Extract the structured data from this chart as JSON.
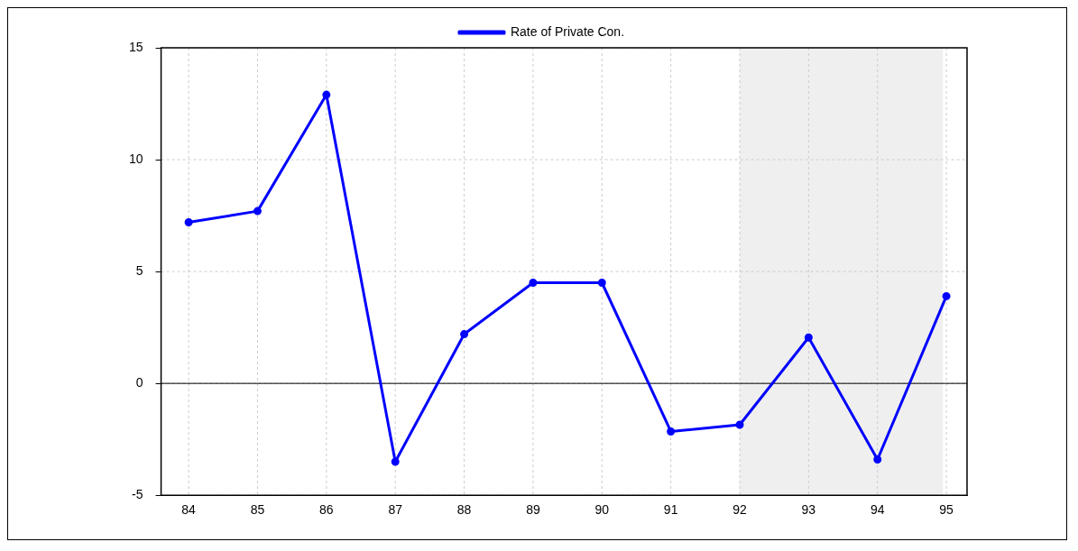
{
  "chart_data": {
    "type": "line",
    "x": [
      84,
      85,
      86,
      87,
      88,
      89,
      90,
      91,
      92,
      93,
      94,
      95
    ],
    "series": [
      {
        "name": "Rate of Private Con.",
        "color": "#0000ff",
        "values": [
          7.2,
          7.7,
          12.9,
          -3.5,
          2.2,
          4.5,
          4.5,
          -2.15,
          -1.85,
          2.05,
          -3.4,
          3.9
        ]
      }
    ],
    "xlim": [
      83.6,
      95.3
    ],
    "xticks": [
      84,
      85,
      86,
      87,
      88,
      89,
      90,
      91,
      92,
      93,
      94,
      95
    ],
    "ylim": [
      -5,
      15
    ],
    "yticks": [
      -5,
      0,
      5,
      10,
      15
    ],
    "ref_lines": [
      {
        "axis": "y",
        "value": 0,
        "color": "#000000"
      }
    ],
    "bands": [
      {
        "axis": "x",
        "from": 92,
        "to": 94.95,
        "color": "#efefef"
      }
    ],
    "grid": true,
    "legend": "top",
    "marker": "circle",
    "line_style": "solid"
  }
}
